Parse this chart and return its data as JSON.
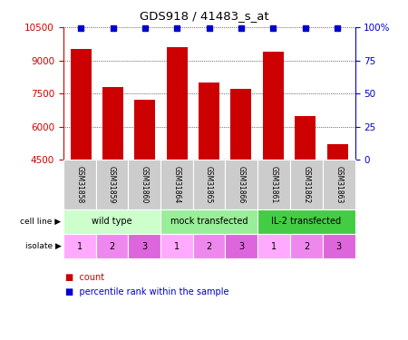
{
  "title": "GDS918 / 41483_s_at",
  "samples": [
    "GSM31858",
    "GSM31859",
    "GSM31860",
    "GSM31864",
    "GSM31865",
    "GSM31866",
    "GSM31861",
    "GSM31862",
    "GSM31863"
  ],
  "counts": [
    9500,
    7800,
    7200,
    9600,
    8000,
    7700,
    9400,
    6500,
    5200
  ],
  "percentiles": [
    99,
    99,
    99,
    99,
    99,
    99,
    99,
    99,
    99
  ],
  "ylim_left": [
    4500,
    10500
  ],
  "ylim_right": [
    0,
    100
  ],
  "yticks_left": [
    4500,
    6000,
    7500,
    9000,
    10500
  ],
  "yticks_right": [
    0,
    25,
    50,
    75,
    100
  ],
  "bar_color": "#cc0000",
  "scatter_color": "#0000cc",
  "cell_lines": [
    {
      "label": "wild type",
      "start": 0,
      "end": 3,
      "color": "#ccffcc"
    },
    {
      "label": "mock transfected",
      "start": 3,
      "end": 6,
      "color": "#99ee99"
    },
    {
      "label": "IL-2 transfected",
      "start": 6,
      "end": 9,
      "color": "#44cc44"
    }
  ],
  "isolates": [
    "1",
    "2",
    "3",
    "1",
    "2",
    "3",
    "1",
    "2",
    "3"
  ],
  "isolate_colors": [
    "#ffaaff",
    "#ee88ee",
    "#dd66dd",
    "#ffaaff",
    "#ee88ee",
    "#dd66dd",
    "#ffaaff",
    "#ee88ee",
    "#dd66dd"
  ],
  "grid_color": "#000000",
  "bar_color_left": "#cc0000",
  "label_color_right": "#0000cc",
  "cell_line_label": "cell line",
  "isolate_label": "isolate",
  "sample_col_color": "#cccccc"
}
